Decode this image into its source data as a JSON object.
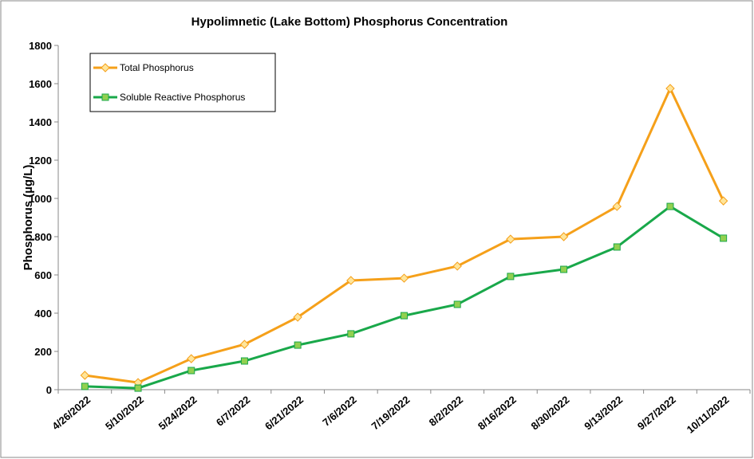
{
  "chart_data": {
    "type": "line",
    "title": "Hypolimnetic (Lake Bottom) Phosphorus Concentration",
    "y_label": "Phosphorus (µg/L)",
    "categories": [
      "4/26/2022",
      "5/10/2022",
      "5/24/2022",
      "6/7/2022",
      "6/21/2022",
      "7/6/2022",
      "7/19/2022",
      "8/2/2022",
      "8/16/2022",
      "8/30/2022",
      "9/13/2022",
      "9/27/2022",
      "10/11/2022"
    ],
    "series": [
      {
        "name": "Total Phosphorus",
        "color": "#f5a01a",
        "marker": "diamond",
        "marker_fill": "#ffe59a",
        "values": [
          75,
          37,
          162,
          237,
          379,
          571,
          583,
          646,
          787,
          800,
          958,
          1575,
          987
        ]
      },
      {
        "name": "Soluble Reactive Phosphorus",
        "color": "#19a84a",
        "marker": "square",
        "marker_fill": "#92d050",
        "values": [
          17,
          8,
          100,
          150,
          233,
          292,
          387,
          446,
          592,
          629,
          746,
          958,
          792
        ]
      }
    ],
    "ylim": [
      0,
      1800
    ],
    "yticks": [
      0,
      200,
      400,
      600,
      800,
      1000,
      1200,
      1400,
      1600,
      1800
    ],
    "grid": false,
    "legend": "upper left"
  }
}
